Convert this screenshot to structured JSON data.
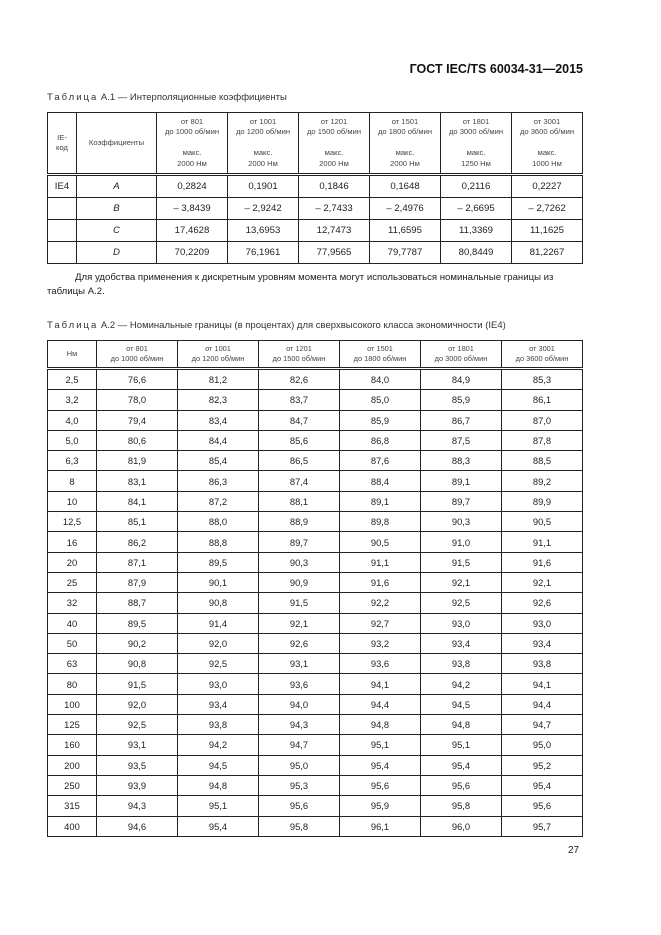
{
  "header": {
    "doc_code": "ГОСТ IEC/TS 60034-31—2015"
  },
  "table1": {
    "caption_prefix": "Таблица",
    "caption_rest": " А.1 — Интерполяционные коэффициенты",
    "col_ie": "IE-\nкод",
    "col_coef": "Коэффициенты",
    "speed_cols": [
      {
        "range1": "от 801",
        "range2": "до 1000 об/мин",
        "max1": "макс.",
        "max2": "2000 Нм"
      },
      {
        "range1": "от 1001",
        "range2": "до 1200 об/мин",
        "max1": "макс.",
        "max2": "2000 Нм"
      },
      {
        "range1": "от 1201",
        "range2": "до 1500 об/мин",
        "max1": "макс.",
        "max2": "2000 Нм"
      },
      {
        "range1": "от 1501",
        "range2": "до 1800 об/мин",
        "max1": "макс.",
        "max2": "2000 Нм"
      },
      {
        "range1": "от 1801",
        "range2": "до 3000 об/мин",
        "max1": "макс.",
        "max2": "1250 Нм"
      },
      {
        "range1": "от 3001",
        "range2": "до 3600 об/мин",
        "max1": "макс.",
        "max2": "1000 Нм"
      }
    ],
    "rows": [
      {
        "ie": "IE4",
        "coef": "A",
        "values": [
          "0,2824",
          "0,1901",
          "0,1846",
          "0,1648",
          "0,2116",
          "0,2227"
        ]
      },
      {
        "ie": "",
        "coef": "B",
        "values": [
          "– 3,8439",
          "– 2,9242",
          "– 2,7433",
          "– 2,4976",
          "– 2,6695",
          "– 2,7262"
        ]
      },
      {
        "ie": "",
        "coef": "C",
        "values": [
          "17,4628",
          "13,6953",
          "12,7473",
          "11,6595",
          "11,3369",
          "11,1625"
        ]
      },
      {
        "ie": "",
        "coef": "D",
        "values": [
          "70,2209",
          "76,1961",
          "77,9565",
          "79,7787",
          "80,8449",
          "81,2267"
        ]
      }
    ]
  },
  "paragraph": "Для удобства применения к дискретным уровням момента могут использоваться номинальные границы из таблицы А.2.",
  "table2": {
    "caption_prefix": "Таблица",
    "caption_rest": " А.2 — Номинальные границы (в процентах) для сверхвысокого класса экономичности (IE4)",
    "col_nm": "Нм",
    "speed_cols": [
      {
        "range1": "от 801",
        "range2": "до 1000 об/мин"
      },
      {
        "range1": "от 1001",
        "range2": "до 1200 об/мин"
      },
      {
        "range1": "от 1201",
        "range2": "до 1500 об/мин"
      },
      {
        "range1": "от 1501",
        "range2": "до 1800 об/мин"
      },
      {
        "range1": "от 1801",
        "range2": "до 3000 об/мин"
      },
      {
        "range1": "от 3001",
        "range2": "до 3600 об/мин"
      }
    ],
    "rows": [
      [
        "2,5",
        "76,6",
        "81,2",
        "82,6",
        "84,0",
        "84,9",
        "85,3"
      ],
      [
        "3,2",
        "78,0",
        "82,3",
        "83,7",
        "85,0",
        "85,9",
        "86,1"
      ],
      [
        "4,0",
        "79,4",
        "83,4",
        "84,7",
        "85,9",
        "86,7",
        "87,0"
      ],
      [
        "5,0",
        "80,6",
        "84,4",
        "85,6",
        "86,8",
        "87,5",
        "87,8"
      ],
      [
        "6,3",
        "81,9",
        "85,4",
        "86,5",
        "87,6",
        "88,3",
        "88,5"
      ],
      [
        "8",
        "83,1",
        "86,3",
        "87,4",
        "88,4",
        "89,1",
        "89,2"
      ],
      [
        "10",
        "84,1",
        "87,2",
        "88,1",
        "89,1",
        "89,7",
        "89,9"
      ],
      [
        "12,5",
        "85,1",
        "88,0",
        "88,9",
        "89,8",
        "90,3",
        "90,5"
      ],
      [
        "16",
        "86,2",
        "88,8",
        "89,7",
        "90,5",
        "91,0",
        "91,1"
      ],
      [
        "20",
        "87,1",
        "89,5",
        "90,3",
        "91,1",
        "91,5",
        "91,6"
      ],
      [
        "25",
        "87,9",
        "90,1",
        "90,9",
        "91,6",
        "92,1",
        "92,1"
      ],
      [
        "32",
        "88,7",
        "90,8",
        "91,5",
        "92,2",
        "92,5",
        "92,6"
      ],
      [
        "40",
        "89,5",
        "91,4",
        "92,1",
        "92,7",
        "93,0",
        "93,0"
      ],
      [
        "50",
        "90,2",
        "92,0",
        "92,6",
        "93,2",
        "93,4",
        "93,4"
      ],
      [
        "63",
        "90,8",
        "92,5",
        "93,1",
        "93,6",
        "93,8",
        "93,8"
      ],
      [
        "80",
        "91,5",
        "93,0",
        "93,6",
        "94,1",
        "94,2",
        "94,1"
      ],
      [
        "100",
        "92,0",
        "93,4",
        "94,0",
        "94,4",
        "94,5",
        "94,4"
      ],
      [
        "125",
        "92,5",
        "93,8",
        "94,3",
        "94,8",
        "94,8",
        "94,7"
      ],
      [
        "160",
        "93,1",
        "94,2",
        "94,7",
        "95,1",
        "95,1",
        "95,0"
      ],
      [
        "200",
        "93,5",
        "94,5",
        "95,0",
        "95,4",
        "95,4",
        "95,2"
      ],
      [
        "250",
        "93,9",
        "94,8",
        "95,3",
        "95,6",
        "95,6",
        "95,4"
      ],
      [
        "315",
        "94,3",
        "95,1",
        "95,6",
        "95,9",
        "95,8",
        "95,6"
      ],
      [
        "400",
        "94,6",
        "95,4",
        "95,8",
        "96,1",
        "96,0",
        "95,7"
      ]
    ]
  },
  "page_number": "27"
}
